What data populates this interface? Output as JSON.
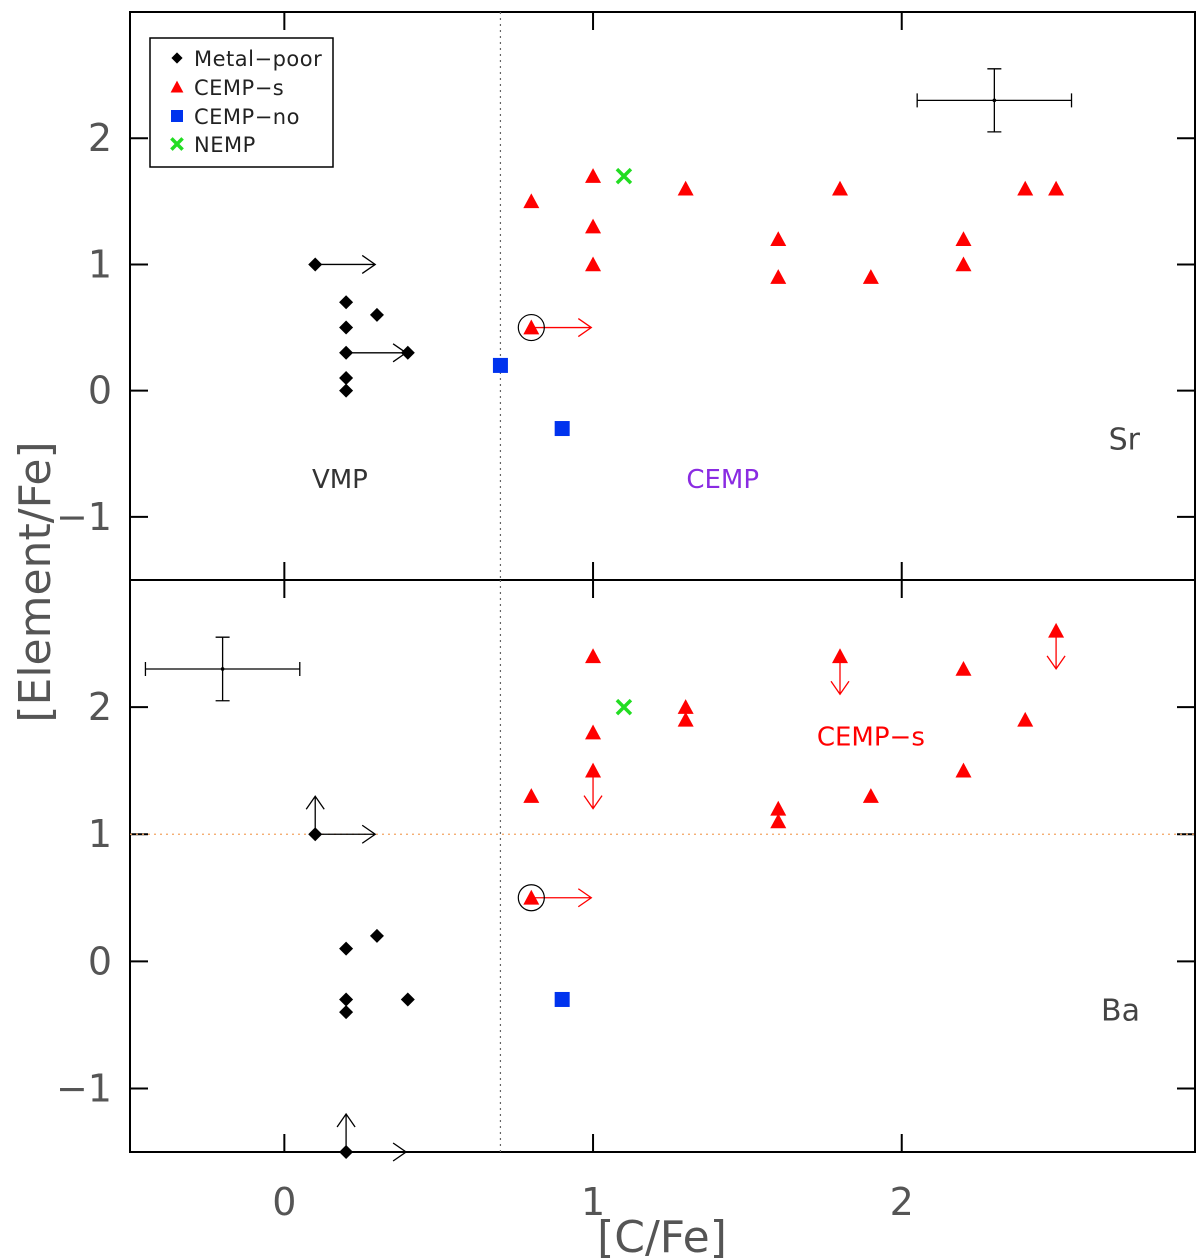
{
  "chart_data": {
    "type": "scatter",
    "xlabel": "[C/Fe]",
    "ylabel": "[Element/Fe]",
    "xlim": [
      -0.5,
      2.95
    ],
    "x_ticks": [
      0,
      1,
      2
    ],
    "x_tick_labels": [
      "0",
      "1",
      "2"
    ],
    "divider_x": 0.7,
    "legend": {
      "position": "top-left of upper panel",
      "entries": [
        {
          "label": "Metal−poor",
          "marker": "diamond",
          "color": "#000000"
        },
        {
          "label": "CEMP−s",
          "marker": "triangle",
          "color": "#ff0000"
        },
        {
          "label": "CEMP−no",
          "marker": "square",
          "color": "#0033ee"
        },
        {
          "label": "NEMP",
          "marker": "x",
          "color": "#22dd22"
        }
      ]
    },
    "colors": {
      "metal_poor": "#000000",
      "cemp_s": "#ff0000",
      "cemp_no": "#0033ee",
      "nemp": "#22dd22",
      "cemp_label": "#8a2be2",
      "error_bar": "#000000",
      "reference_line": "#f4a460",
      "divider": "#666666"
    },
    "panels": [
      {
        "element": "Sr",
        "ylim": [
          -1.5,
          3.0
        ],
        "y_ticks": [
          -1,
          0,
          1,
          2
        ],
        "y_tick_labels": [
          "−1",
          "0",
          "1",
          "2"
        ],
        "region_labels": [
          {
            "text": "VMP",
            "x": 0.18,
            "y": -0.7,
            "color": "#333333"
          },
          {
            "text": "CEMP",
            "x": 1.42,
            "y": -0.7,
            "color": "#8a2be2"
          }
        ],
        "error_bar": {
          "x": 2.3,
          "y": 2.3,
          "xerr": 0.25,
          "yerr": 0.25
        },
        "series": [
          {
            "name": "Metal−poor",
            "marker": "diamond",
            "points": [
              [
                0.1,
                1.0
              ],
              [
                0.2,
                0.7
              ],
              [
                0.3,
                0.6
              ],
              [
                0.2,
                0.5
              ],
              [
                0.2,
                0.3
              ],
              [
                0.4,
                0.3
              ],
              [
                0.2,
                0.1
              ],
              [
                0.2,
                0.0
              ]
            ]
          },
          {
            "name": "CEMP−s",
            "marker": "triangle",
            "points": [
              [
                0.8,
                1.5
              ],
              [
                1.0,
                1.7
              ],
              [
                1.0,
                1.3
              ],
              [
                1.0,
                1.0
              ],
              [
                1.3,
                1.6
              ],
              [
                1.6,
                1.2
              ],
              [
                1.6,
                0.9
              ],
              [
                1.8,
                1.6
              ],
              [
                1.9,
                0.9
              ],
              [
                2.2,
                1.2
              ],
              [
                2.2,
                1.0
              ],
              [
                2.4,
                1.6
              ],
              [
                2.5,
                1.6
              ],
              [
                0.8,
                0.5
              ]
            ]
          },
          {
            "name": "CEMP−no",
            "marker": "square",
            "points": [
              [
                0.7,
                0.2
              ],
              [
                0.9,
                -0.3
              ]
            ]
          },
          {
            "name": "NEMP",
            "marker": "x",
            "points": [
              [
                1.1,
                1.7
              ]
            ]
          }
        ],
        "circled_points": [
          [
            0.8,
            0.5
          ]
        ],
        "limit_arrows": [
          {
            "x": 0.1,
            "y": 1.0,
            "direction": "right",
            "color": "#000000"
          },
          {
            "x": 0.2,
            "y": 0.3,
            "direction": "right",
            "color": "#000000"
          },
          {
            "x": 0.8,
            "y": 0.5,
            "direction": "right",
            "color": "#ff0000"
          }
        ]
      },
      {
        "element": "Ba",
        "ylim": [
          -1.5,
          3.0
        ],
        "y_ticks": [
          -1,
          0,
          1,
          2
        ],
        "y_tick_labels": [
          "−1",
          "0",
          "1",
          "2"
        ],
        "reference_y": 1.0,
        "region_labels": [
          {
            "text": "CEMP−s",
            "x": 1.9,
            "y": 1.77,
            "color": "#ff0000"
          }
        ],
        "error_bar": {
          "x": -0.2,
          "y": 2.3,
          "xerr": 0.25,
          "yerr": 0.25
        },
        "series": [
          {
            "name": "Metal−poor",
            "marker": "diamond",
            "points": [
              [
                0.1,
                1.0
              ],
              [
                0.3,
                0.2
              ],
              [
                0.2,
                0.1
              ],
              [
                0.2,
                -0.3
              ],
              [
                0.4,
                -0.3
              ],
              [
                0.2,
                -0.4
              ],
              [
                0.2,
                -1.5
              ]
            ]
          },
          {
            "name": "CEMP−s",
            "marker": "triangle",
            "points": [
              [
                0.8,
                1.3
              ],
              [
                1.0,
                2.4
              ],
              [
                1.0,
                1.8
              ],
              [
                1.0,
                1.5
              ],
              [
                1.3,
                2.0
              ],
              [
                1.3,
                1.9
              ],
              [
                1.6,
                1.2
              ],
              [
                1.6,
                1.1
              ],
              [
                1.8,
                2.4
              ],
              [
                1.9,
                1.3
              ],
              [
                2.2,
                2.3
              ],
              [
                2.2,
                1.5
              ],
              [
                2.4,
                1.9
              ],
              [
                2.5,
                2.6
              ],
              [
                0.8,
                0.5
              ]
            ]
          },
          {
            "name": "CEMP−no",
            "marker": "square",
            "points": [
              [
                0.9,
                -0.3
              ]
            ]
          },
          {
            "name": "NEMP",
            "marker": "x",
            "points": [
              [
                1.1,
                2.0
              ]
            ]
          }
        ],
        "circled_points": [
          [
            0.8,
            0.5
          ]
        ],
        "limit_arrows": [
          {
            "x": 0.1,
            "y": 1.0,
            "direction": "right",
            "color": "#000000"
          },
          {
            "x": 0.1,
            "y": 1.0,
            "direction": "up",
            "color": "#000000"
          },
          {
            "x": 0.2,
            "y": -1.5,
            "direction": "right",
            "color": "#000000"
          },
          {
            "x": 0.2,
            "y": -1.5,
            "direction": "up",
            "color": "#000000"
          },
          {
            "x": 0.8,
            "y": 0.5,
            "direction": "right",
            "color": "#ff0000"
          },
          {
            "x": 1.0,
            "y": 1.5,
            "direction": "down",
            "color": "#ff0000"
          },
          {
            "x": 1.8,
            "y": 2.4,
            "direction": "down",
            "color": "#ff0000"
          },
          {
            "x": 2.5,
            "y": 2.6,
            "direction": "down",
            "color": "#ff0000"
          }
        ]
      }
    ]
  }
}
